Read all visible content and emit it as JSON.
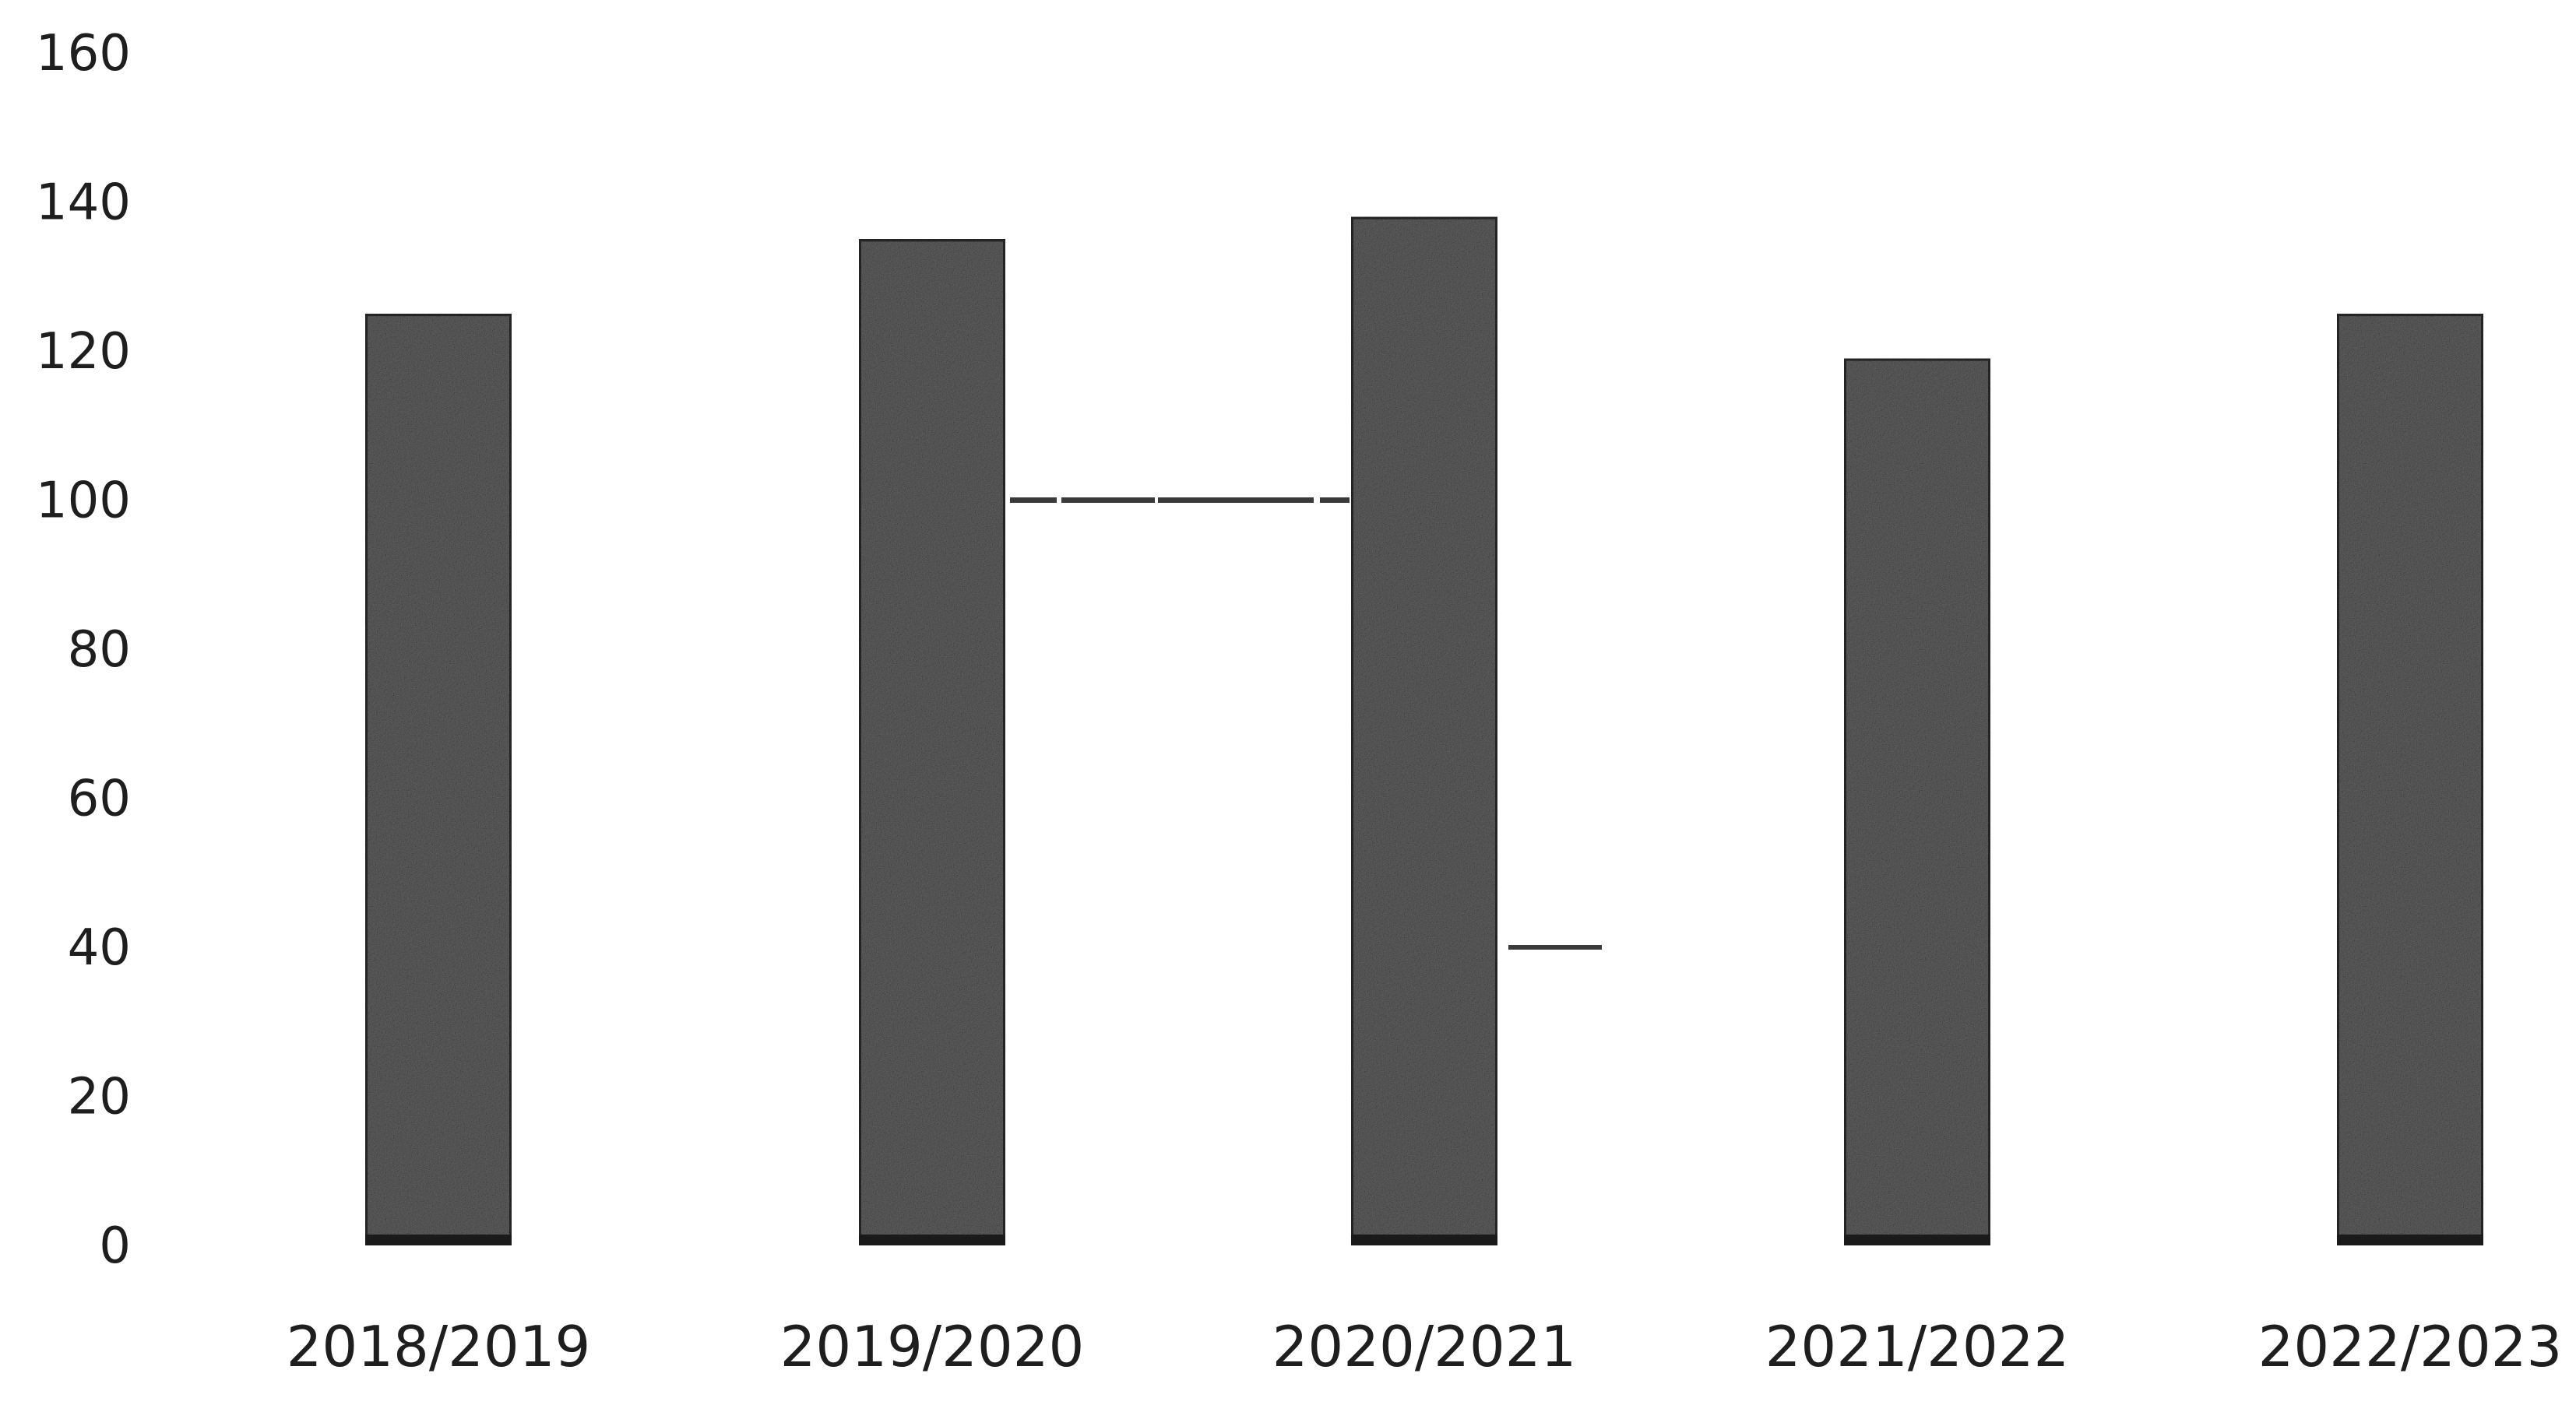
{
  "chart_data": {
    "type": "bar",
    "categories": [
      "2018/2019",
      "2019/2020",
      "2020/2021",
      "2021/2022",
      "2022/2023"
    ],
    "values": [
      125,
      135,
      138,
      119,
      125
    ],
    "title": "",
    "xlabel": "",
    "ylabel": "",
    "ylim": [
      0,
      160
    ],
    "y_ticks": [
      0,
      20,
      40,
      60,
      80,
      100,
      120,
      140,
      160
    ],
    "grid": false,
    "legend": "none",
    "bar_color": "#5f5f5f",
    "bar_edge_color": "#2b2b2b",
    "annotations": [
      {
        "type": "reference-line",
        "y": 100,
        "from_category": "2019/2020",
        "to_category": "2020/2021"
      },
      {
        "type": "tick-mark",
        "y": 40,
        "after_category": "2020/2021"
      }
    ]
  }
}
